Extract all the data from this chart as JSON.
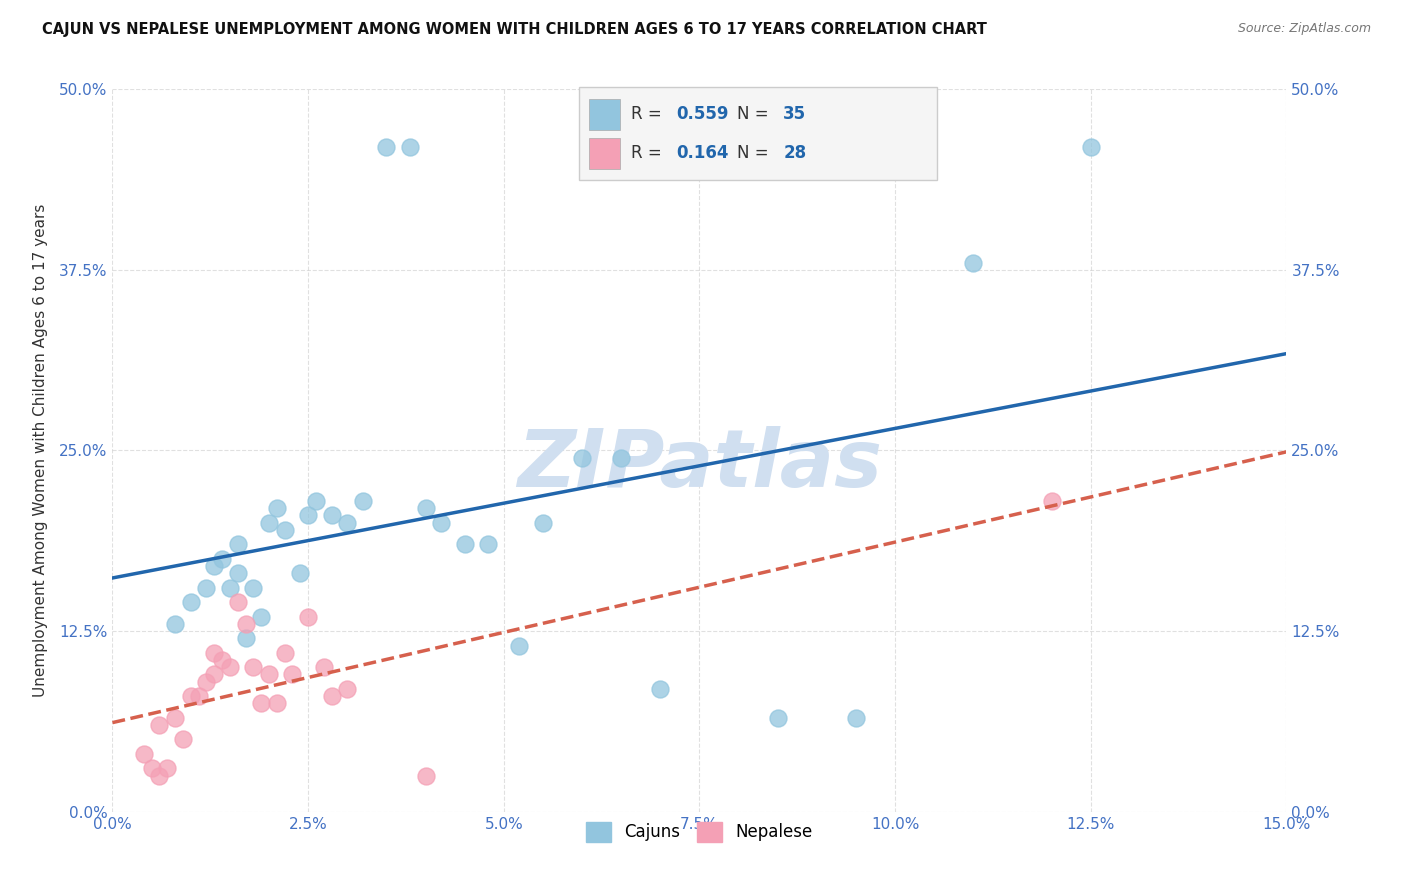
{
  "title": "CAJUN VS NEPALESE UNEMPLOYMENT AMONG WOMEN WITH CHILDREN AGES 6 TO 17 YEARS CORRELATION CHART",
  "source": "Source: ZipAtlas.com",
  "xlim": [
    0,
    0.15
  ],
  "ylim": [
    0,
    0.5
  ],
  "x_ticks": [
    0.0,
    0.025,
    0.05,
    0.075,
    0.1,
    0.125,
    0.15
  ],
  "y_ticks": [
    0.0,
    0.125,
    0.25,
    0.375,
    0.5
  ],
  "legend_r1": "0.559",
  "legend_n1": "35",
  "legend_r2": "0.164",
  "legend_n2": "28",
  "legend_label1": "Cajuns",
  "legend_label2": "Nepalese",
  "cajun_color": "#92c5de",
  "nepalese_color": "#f4a0b5",
  "cajun_line_color": "#2166ac",
  "nepalese_line_color": "#d6604d",
  "watermark": "ZIPatlas",
  "watermark_color": "#d0dff0",
  "cajun_x": [
    0.008,
    0.01,
    0.012,
    0.013,
    0.014,
    0.015,
    0.016,
    0.016,
    0.017,
    0.018,
    0.019,
    0.02,
    0.021,
    0.022,
    0.024,
    0.025,
    0.026,
    0.028,
    0.03,
    0.032,
    0.035,
    0.038,
    0.04,
    0.042,
    0.045,
    0.048,
    0.052,
    0.055,
    0.06,
    0.065,
    0.07,
    0.085,
    0.095,
    0.11,
    0.125
  ],
  "cajun_y": [
    0.13,
    0.145,
    0.155,
    0.17,
    0.175,
    0.155,
    0.165,
    0.185,
    0.12,
    0.155,
    0.135,
    0.2,
    0.21,
    0.195,
    0.165,
    0.205,
    0.215,
    0.205,
    0.2,
    0.215,
    0.46,
    0.46,
    0.21,
    0.2,
    0.185,
    0.185,
    0.115,
    0.2,
    0.245,
    0.245,
    0.085,
    0.065,
    0.065,
    0.38,
    0.46
  ],
  "nepalese_x": [
    0.004,
    0.005,
    0.006,
    0.006,
    0.007,
    0.008,
    0.009,
    0.01,
    0.011,
    0.012,
    0.013,
    0.013,
    0.014,
    0.015,
    0.016,
    0.017,
    0.018,
    0.019,
    0.02,
    0.021,
    0.022,
    0.023,
    0.025,
    0.027,
    0.028,
    0.03,
    0.04,
    0.12
  ],
  "nepalese_y": [
    0.04,
    0.03,
    0.025,
    0.06,
    0.03,
    0.065,
    0.05,
    0.08,
    0.08,
    0.09,
    0.095,
    0.11,
    0.105,
    0.1,
    0.145,
    0.13,
    0.1,
    0.075,
    0.095,
    0.075,
    0.11,
    0.095,
    0.135,
    0.1,
    0.08,
    0.085,
    0.025,
    0.215
  ],
  "background_color": "#ffffff",
  "grid_color": "#cccccc",
  "tick_label_color": "#4472c4"
}
